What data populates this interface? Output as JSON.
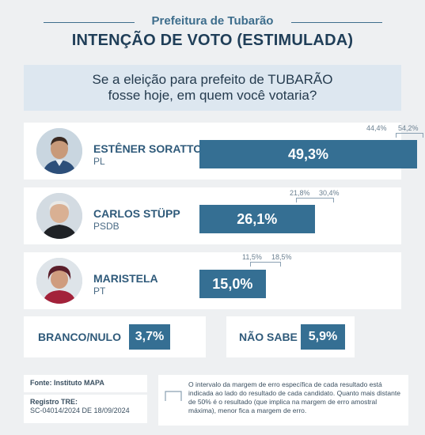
{
  "header": {
    "subtitle": "Prefeitura de Tubarão",
    "title": "INTENÇÃO DE VOTO (ESTIMULADA)",
    "question_line1": "Se a eleição para prefeito de TUBARÃO",
    "question_line2": "fosse hoje, em quem você votaria?"
  },
  "chart_data": {
    "type": "bar",
    "categories": [
      "ESTÊNER SORATTO",
      "CARLOS STÜPP",
      "MARISTELA",
      "BRANCO/NULO",
      "NÃO SABE"
    ],
    "values": [
      49.3,
      26.1,
      15.0,
      3.7,
      5.9
    ],
    "unit": "%",
    "margin_of_error": [
      [
        44.4,
        54.2
      ],
      [
        21.8,
        30.4
      ],
      [
        11.5,
        18.5
      ],
      null,
      null
    ]
  },
  "candidates": [
    {
      "name": "ESTÊNER SORATTO",
      "party": "PL",
      "value": 49.3,
      "label": "49,3%",
      "err_low": "44,4%",
      "err_high": "54,2%",
      "low": 44.4,
      "high": 54.2
    },
    {
      "name": "CARLOS STÜPP",
      "party": "PSDB",
      "value": 26.1,
      "label": "26,1%",
      "err_low": "21,8%",
      "err_high": "30,4%",
      "low": 21.8,
      "high": 30.4
    },
    {
      "name": "MARISTELA",
      "party": "PT",
      "value": 15.0,
      "label": "15,0%",
      "err_low": "11,5%",
      "err_high": "18,5%",
      "low": 11.5,
      "high": 18.5
    }
  ],
  "others": [
    {
      "name": "BRANCO/NULO",
      "label": "3,7%"
    },
    {
      "name": "NÃO SABE",
      "label": "5,9%"
    }
  ],
  "footer": {
    "source": "Fonte: Instituto MAPA",
    "registry_label": "Registro TRE:",
    "registry_value": "SC-04014/2024 DE 18/09/2024",
    "note": "O intervalo da margem de erro específica de cada resultado está indicada ao lado do resultado de cada candidato. Quanto mais distante de 50% é o resultado (que implica na margem de erro amostral máxima), menor fica a margem de erro."
  },
  "colors": {
    "bar": "#356f93",
    "accent": "#1f3e58"
  }
}
